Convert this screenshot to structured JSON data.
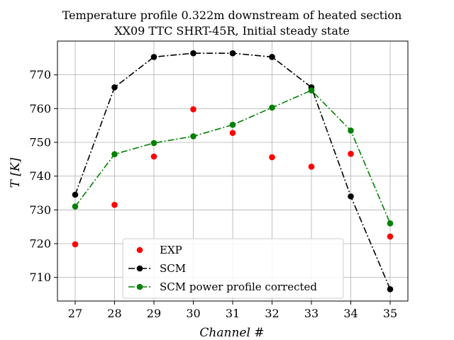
{
  "chart_data": {
    "type": "line",
    "title": "Temperature profile 0.322m downstream of heated section",
    "subtitle": "XX09 TTC SHRT-45R, Initial steady state",
    "xlabel": "Channel #",
    "ylabel": "T [K]",
    "x": [
      27,
      28,
      29,
      30,
      31,
      32,
      33,
      34,
      35
    ],
    "xlim": [
      26.55,
      35.45
    ],
    "ylim": [
      703,
      780
    ],
    "xticks": [
      27,
      28,
      29,
      30,
      31,
      32,
      33,
      34,
      35
    ],
    "yticks": [
      710,
      720,
      730,
      740,
      750,
      760,
      770
    ],
    "grid": true,
    "legend_position": "lower-center",
    "series": [
      {
        "name": "EXP",
        "style": "markers",
        "color": "#ff0000",
        "values": [
          719.8,
          731.5,
          745.8,
          759.8,
          752.8,
          745.6,
          742.8,
          746.6,
          722.1
        ]
      },
      {
        "name": "SCM",
        "style": "dashdot-markers",
        "color": "#000000",
        "values": [
          734.5,
          766.3,
          775.3,
          776.4,
          776.4,
          775.3,
          766.3,
          734.0,
          706.5
        ]
      },
      {
        "name": "SCM power profile corrected",
        "style": "dashdot-markers",
        "color": "#008000",
        "values": [
          731.0,
          746.5,
          749.8,
          751.8,
          755.2,
          760.3,
          765.4,
          753.5,
          726.0
        ]
      }
    ]
  }
}
